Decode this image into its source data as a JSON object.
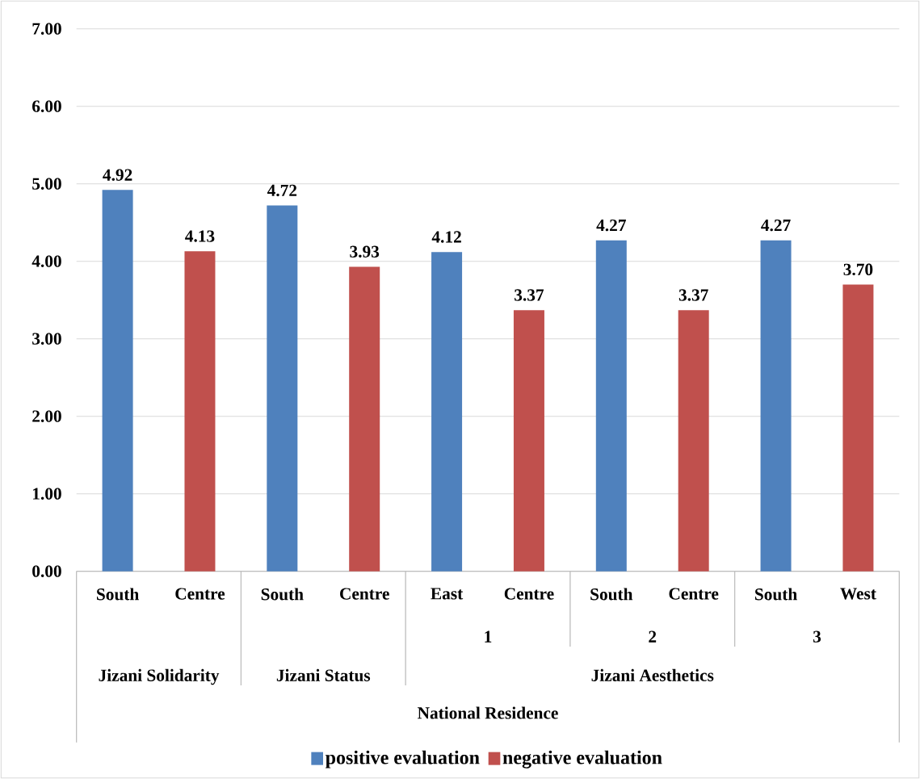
{
  "chart_data": {
    "type": "bar",
    "categories": [
      "South",
      "Centre",
      "South",
      "Centre",
      "East",
      "Centre",
      "South",
      "Centre",
      "South",
      "West"
    ],
    "series": [
      {
        "name": "positive evaluation",
        "color": "#4f81bd",
        "values": [
          4.92,
          null,
          4.72,
          null,
          4.12,
          null,
          4.27,
          null,
          4.27,
          null
        ],
        "value_labels": [
          "4.92",
          null,
          "4.72",
          null,
          "4.12",
          null,
          "4.27",
          null,
          "4.27",
          null
        ]
      },
      {
        "name": "negative evaluation",
        "color": "#c0504d",
        "values": [
          null,
          4.13,
          null,
          3.93,
          null,
          3.37,
          null,
          3.37,
          null,
          3.7
        ],
        "value_labels": [
          null,
          "4.13",
          null,
          "3.93",
          null,
          "3.37",
          null,
          "3.37",
          null,
          "3.70"
        ]
      }
    ],
    "ylim": [
      0,
      7
    ],
    "yticks": [
      {
        "value": 0,
        "label": "0.00"
      },
      {
        "value": 1,
        "label": "1.00"
      },
      {
        "value": 2,
        "label": "2.00"
      },
      {
        "value": 3,
        "label": "3.00"
      },
      {
        "value": 4,
        "label": "4.00"
      },
      {
        "value": 5,
        "label": "5.00"
      },
      {
        "value": 6,
        "label": "6.00"
      },
      {
        "value": 7,
        "label": "7.00"
      }
    ],
    "grid": "y",
    "legend": "bottom",
    "annotations": [
      "1",
      "2",
      "3",
      "Jizani Solidarity",
      "Jizani Status",
      "Jizani Aesthetics",
      "National Residence"
    ]
  }
}
